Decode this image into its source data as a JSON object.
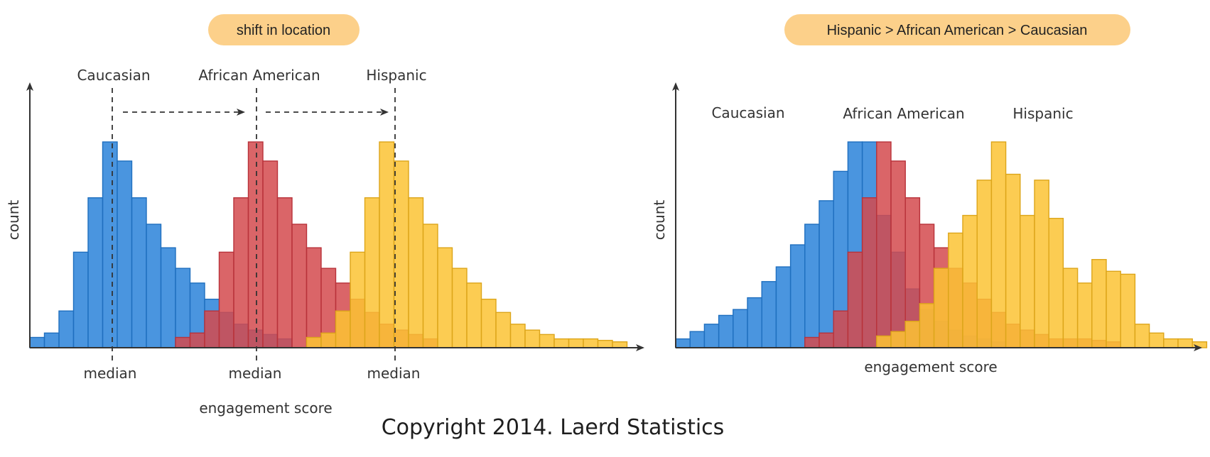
{
  "copyright": "Copyright 2014. Laerd Statistics",
  "colors": {
    "caucasian": "#2a82d9",
    "caucasian_stroke": "#1f6fbf",
    "african_american": "#d44a4e",
    "african_american_stroke": "#b8323a",
    "hispanic": "#fcc334",
    "hispanic_stroke": "#dca51a",
    "pill": "#fcd08a",
    "axis": "#333333"
  },
  "chart_data": [
    {
      "type": "bar",
      "subtype": "overlapping-histogram",
      "title": "shift in location",
      "xlabel": "engagement score",
      "ylabel": "count",
      "ylim": [
        0,
        14
      ],
      "bin_range": [
        0,
        41
      ],
      "median_label": "median",
      "series": [
        {
          "name": "Caucasian",
          "color_key": "caucasian",
          "start_bin": 0,
          "values": [
            0.7,
            1.0,
            2.5,
            6.5,
            10.2,
            14.0,
            12.7,
            10.2,
            8.4,
            6.8,
            5.4,
            4.4,
            3.3,
            2.4,
            1.6,
            1.2,
            0.9,
            0.6
          ],
          "median": 5.5
        },
        {
          "name": "African American",
          "color_key": "african_american",
          "start_bin": 10,
          "values": [
            0.7,
            1.0,
            2.5,
            6.5,
            10.2,
            14.0,
            12.7,
            10.2,
            8.4,
            6.8,
            5.4,
            4.4,
            3.3,
            2.4,
            1.6,
            1.2,
            0.9,
            0.6
          ],
          "median": 15.5
        },
        {
          "name": "Hispanic",
          "color_key": "hispanic",
          "start_bin": 19,
          "values": [
            0.7,
            1.0,
            2.5,
            6.5,
            10.2,
            14.0,
            12.7,
            10.2,
            8.4,
            6.8,
            5.4,
            4.4,
            3.3,
            2.4,
            1.6,
            1.2,
            0.9,
            0.6,
            0.6,
            0.6,
            0.5,
            0.4
          ],
          "median": 25.0
        }
      ]
    },
    {
      "type": "bar",
      "subtype": "overlapping-histogram",
      "title": "Hispanic > African American > Caucasian",
      "xlabel": "engagement score",
      "ylabel": "count",
      "ylim": [
        0,
        14
      ],
      "bin_range": [
        0,
        41
      ],
      "series": [
        {
          "name": "Caucasian",
          "color_key": "caucasian",
          "start_bin": 0,
          "values": [
            0.6,
            1.1,
            1.6,
            2.2,
            2.6,
            3.4,
            4.5,
            5.5,
            7.0,
            8.4,
            10.0,
            12.0,
            14.0,
            14.0,
            9.0,
            6.5,
            4.0,
            2.6,
            1.8,
            1.2,
            0.8,
            0.6,
            0.4
          ]
        },
        {
          "name": "African American",
          "color_key": "african_american",
          "start_bin": 9,
          "values": [
            0.7,
            1.0,
            2.5,
            6.5,
            10.2,
            14.0,
            12.7,
            10.2,
            8.4,
            6.8,
            5.4,
            4.4,
            3.3,
            2.4,
            1.6,
            1.2,
            0.9,
            0.6,
            0.6,
            0.6,
            0.5,
            0.4
          ]
        },
        {
          "name": "Hispanic",
          "color_key": "hispanic",
          "start_bin": 14,
          "values": [
            0.8,
            1.1,
            1.8,
            3.0,
            5.4,
            7.8,
            9.0,
            11.4,
            14.0,
            11.8,
            9.0,
            11.4,
            8.8,
            5.4,
            4.4,
            6.0,
            5.2,
            5.0,
            1.6,
            1.0,
            0.6,
            0.6,
            0.4
          ]
        }
      ]
    }
  ]
}
